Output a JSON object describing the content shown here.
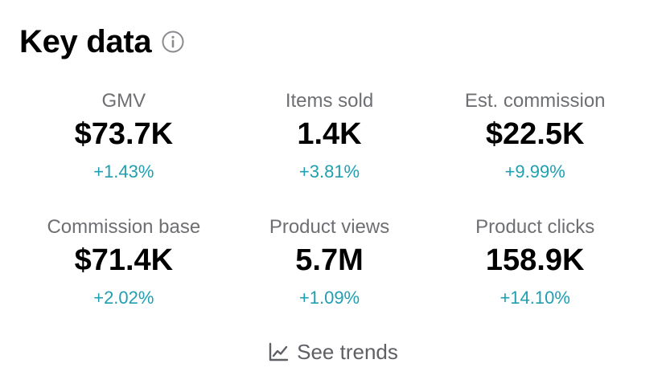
{
  "header": {
    "title": "Key data",
    "info_icon": "info-icon"
  },
  "metrics": [
    {
      "label": "GMV",
      "value": "$73.7K",
      "change": "+1.43%"
    },
    {
      "label": "Items sold",
      "value": "1.4K",
      "change": "+3.81%"
    },
    {
      "label": "Est. commission",
      "value": "$22.5K",
      "change": "+9.99%"
    },
    {
      "label": "Commission base",
      "value": "$71.4K",
      "change": "+2.02%"
    },
    {
      "label": "Product views",
      "value": "5.7M",
      "change": "+1.09%"
    },
    {
      "label": "Product clicks",
      "value": "158.9K",
      "change": "+14.10%"
    }
  ],
  "trends": {
    "label": "See trends",
    "icon": "line-chart-icon"
  },
  "colors": {
    "title": "#000000",
    "label": "#6e6f73",
    "value": "#000000",
    "change_positive": "#1f9fb0",
    "trends_text": "#5f6065"
  }
}
